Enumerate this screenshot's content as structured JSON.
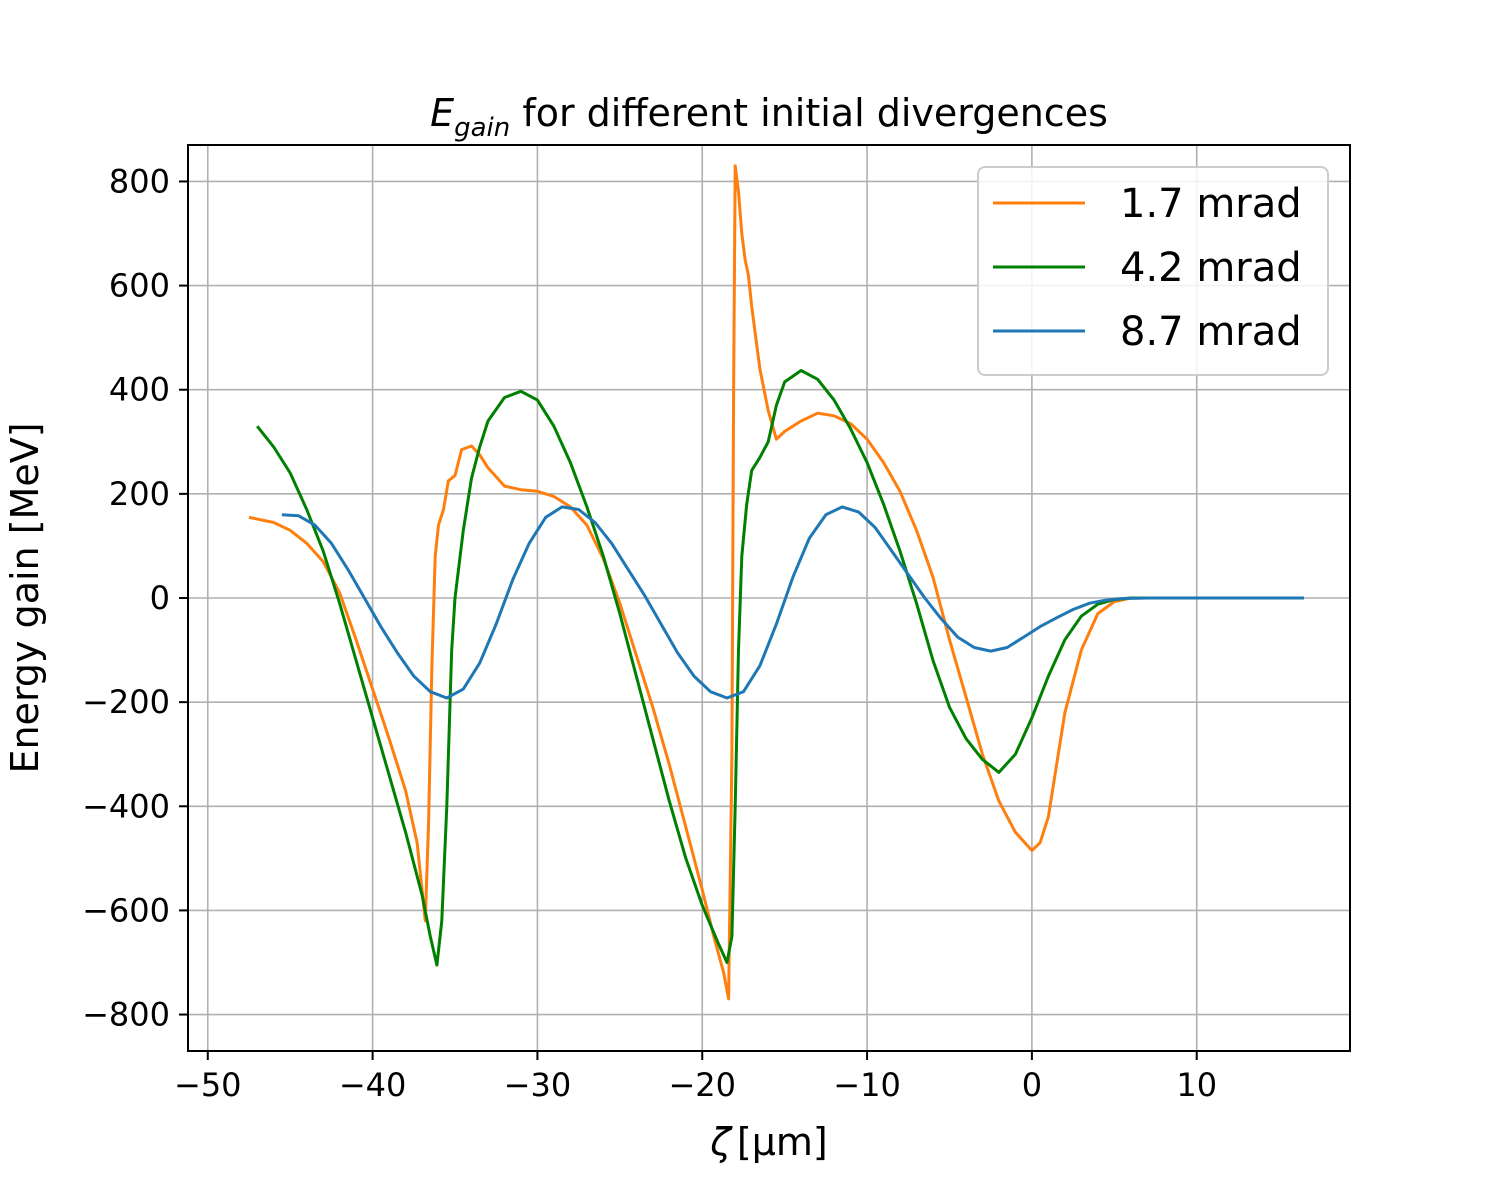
{
  "chart_data": {
    "type": "line",
    "title_main": "E",
    "title_sub": "gain",
    "title_rest": " for different initial divergences",
    "xlabel_symbol": "ζ",
    "xlabel_unit": "[μm]",
    "ylabel": "Energy gain [MeV]",
    "xlim": [
      -51.2,
      19.3
    ],
    "ylim": [
      -870,
      870
    ],
    "xticks": [
      -50,
      -40,
      -30,
      -20,
      -10,
      0,
      10
    ],
    "xtick_labels": [
      "−50",
      "−40",
      "−30",
      "−20",
      "−10",
      "0",
      "10"
    ],
    "yticks": [
      800,
      600,
      400,
      200,
      0,
      -200,
      -400,
      -600,
      -800
    ],
    "ytick_labels": [
      "800",
      "600",
      "400",
      "200",
      "0",
      "−200",
      "−400",
      "−600",
      "−800"
    ],
    "grid": true,
    "legend_position": "top-right",
    "series": [
      {
        "name": "1.7 mrad",
        "color": "#ff7f0e",
        "points": [
          [
            -47.5,
            155
          ],
          [
            -46,
            145
          ],
          [
            -45,
            130
          ],
          [
            -44,
            105
          ],
          [
            -43,
            70
          ],
          [
            -42,
            10
          ],
          [
            -41,
            -80
          ],
          [
            -40,
            -175
          ],
          [
            -39,
            -270
          ],
          [
            -38,
            -370
          ],
          [
            -37.3,
            -470
          ],
          [
            -36.8,
            -620
          ],
          [
            -36.6,
            -430
          ],
          [
            -36.4,
            -130
          ],
          [
            -36.2,
            80
          ],
          [
            -36,
            140
          ],
          [
            -35.7,
            170
          ],
          [
            -35.4,
            225
          ],
          [
            -35,
            235
          ],
          [
            -34.6,
            285
          ],
          [
            -34,
            292
          ],
          [
            -33.5,
            275
          ],
          [
            -33,
            250
          ],
          [
            -32,
            215
          ],
          [
            -31,
            208
          ],
          [
            -30,
            205
          ],
          [
            -29,
            195
          ],
          [
            -28,
            175
          ],
          [
            -27,
            140
          ],
          [
            -26,
            75
          ],
          [
            -25,
            -10
          ],
          [
            -24,
            -110
          ],
          [
            -23,
            -210
          ],
          [
            -22,
            -320
          ],
          [
            -21,
            -440
          ],
          [
            -20,
            -560
          ],
          [
            -19.3,
            -650
          ],
          [
            -18.7,
            -720
          ],
          [
            -18.4,
            -770
          ],
          [
            -18.2,
            -300
          ],
          [
            -18.1,
            400
          ],
          [
            -18,
            830
          ],
          [
            -17.8,
            780
          ],
          [
            -17.6,
            700
          ],
          [
            -17.4,
            650
          ],
          [
            -17.2,
            620
          ],
          [
            -17,
            560
          ],
          [
            -16.5,
            440
          ],
          [
            -16,
            360
          ],
          [
            -15.5,
            305
          ],
          [
            -15,
            320
          ],
          [
            -14,
            340
          ],
          [
            -13,
            355
          ],
          [
            -12,
            350
          ],
          [
            -11,
            335
          ],
          [
            -10,
            305
          ],
          [
            -9,
            260
          ],
          [
            -8,
            205
          ],
          [
            -7,
            130
          ],
          [
            -6,
            40
          ],
          [
            -5,
            -80
          ],
          [
            -4,
            -190
          ],
          [
            -3,
            -300
          ],
          [
            -2,
            -390
          ],
          [
            -1,
            -450
          ],
          [
            0,
            -485
          ],
          [
            0.5,
            -470
          ],
          [
            1,
            -420
          ],
          [
            1.5,
            -320
          ],
          [
            2,
            -220
          ],
          [
            3,
            -100
          ],
          [
            4,
            -30
          ],
          [
            5,
            -7
          ],
          [
            6,
            0
          ],
          [
            8,
            0
          ],
          [
            16.5,
            0
          ]
        ]
      },
      {
        "name": "4.2 mrad",
        "color": "#008000",
        "points": [
          [
            -47,
            330
          ],
          [
            -46,
            290
          ],
          [
            -45,
            240
          ],
          [
            -44,
            170
          ],
          [
            -43,
            90
          ],
          [
            -42,
            -10
          ],
          [
            -41,
            -120
          ],
          [
            -40,
            -230
          ],
          [
            -39,
            -340
          ],
          [
            -38,
            -450
          ],
          [
            -37,
            -570
          ],
          [
            -36.5,
            -650
          ],
          [
            -36.1,
            -705
          ],
          [
            -35.8,
            -620
          ],
          [
            -35.5,
            -400
          ],
          [
            -35.2,
            -100
          ],
          [
            -35,
            0
          ],
          [
            -34.5,
            130
          ],
          [
            -34,
            230
          ],
          [
            -33.5,
            290
          ],
          [
            -33,
            340
          ],
          [
            -32,
            385
          ],
          [
            -31,
            397
          ],
          [
            -30,
            380
          ],
          [
            -29,
            330
          ],
          [
            -28,
            260
          ],
          [
            -27,
            175
          ],
          [
            -26,
            80
          ],
          [
            -25,
            -30
          ],
          [
            -24,
            -150
          ],
          [
            -23,
            -270
          ],
          [
            -22,
            -390
          ],
          [
            -21,
            -500
          ],
          [
            -20,
            -590
          ],
          [
            -19,
            -665
          ],
          [
            -18.5,
            -700
          ],
          [
            -18.2,
            -650
          ],
          [
            -18,
            -400
          ],
          [
            -17.8,
            -100
          ],
          [
            -17.6,
            80
          ],
          [
            -17.3,
            180
          ],
          [
            -17,
            245
          ],
          [
            -16.5,
            270
          ],
          [
            -16,
            300
          ],
          [
            -15.5,
            370
          ],
          [
            -15,
            415
          ],
          [
            -14,
            437
          ],
          [
            -13,
            420
          ],
          [
            -12,
            380
          ],
          [
            -11,
            325
          ],
          [
            -10,
            260
          ],
          [
            -9,
            180
          ],
          [
            -8,
            90
          ],
          [
            -7,
            -10
          ],
          [
            -6,
            -120
          ],
          [
            -5,
            -210
          ],
          [
            -4,
            -270
          ],
          [
            -3,
            -310
          ],
          [
            -2,
            -335
          ],
          [
            -1,
            -300
          ],
          [
            0,
            -230
          ],
          [
            1,
            -150
          ],
          [
            2,
            -80
          ],
          [
            3,
            -35
          ],
          [
            4,
            -12
          ],
          [
            5,
            -3
          ],
          [
            6,
            0
          ],
          [
            8,
            0
          ],
          [
            16.5,
            0
          ]
        ]
      },
      {
        "name": "8.7 mrad",
        "color": "#1f77b4",
        "points": [
          [
            -45.5,
            160
          ],
          [
            -44.5,
            158
          ],
          [
            -43.5,
            140
          ],
          [
            -42.5,
            105
          ],
          [
            -41.5,
            55
          ],
          [
            -40.5,
            0
          ],
          [
            -39.5,
            -55
          ],
          [
            -38.5,
            -105
          ],
          [
            -37.5,
            -150
          ],
          [
            -36.5,
            -180
          ],
          [
            -35.5,
            -192
          ],
          [
            -34.5,
            -175
          ],
          [
            -33.5,
            -125
          ],
          [
            -32.5,
            -50
          ],
          [
            -31.5,
            35
          ],
          [
            -30.5,
            105
          ],
          [
            -29.5,
            155
          ],
          [
            -28.5,
            175
          ],
          [
            -27.5,
            170
          ],
          [
            -26.5,
            145
          ],
          [
            -25.5,
            105
          ],
          [
            -24.5,
            55
          ],
          [
            -23.5,
            5
          ],
          [
            -22.5,
            -50
          ],
          [
            -21.5,
            -105
          ],
          [
            -20.5,
            -150
          ],
          [
            -19.5,
            -180
          ],
          [
            -18.5,
            -192
          ],
          [
            -17.5,
            -180
          ],
          [
            -16.5,
            -130
          ],
          [
            -15.5,
            -50
          ],
          [
            -14.5,
            40
          ],
          [
            -13.5,
            115
          ],
          [
            -12.5,
            160
          ],
          [
            -11.5,
            175
          ],
          [
            -10.5,
            165
          ],
          [
            -9.5,
            135
          ],
          [
            -8.5,
            90
          ],
          [
            -7.5,
            45
          ],
          [
            -6.5,
            0
          ],
          [
            -5.5,
            -40
          ],
          [
            -4.5,
            -75
          ],
          [
            -3.5,
            -95
          ],
          [
            -2.5,
            -102
          ],
          [
            -1.5,
            -95
          ],
          [
            -0.5,
            -75
          ],
          [
            0.5,
            -55
          ],
          [
            1.5,
            -38
          ],
          [
            2.5,
            -22
          ],
          [
            3.5,
            -10
          ],
          [
            4.5,
            -4
          ],
          [
            5.5,
            -1
          ],
          [
            7,
            0
          ],
          [
            10,
            0
          ],
          [
            16.5,
            0
          ]
        ]
      }
    ]
  }
}
